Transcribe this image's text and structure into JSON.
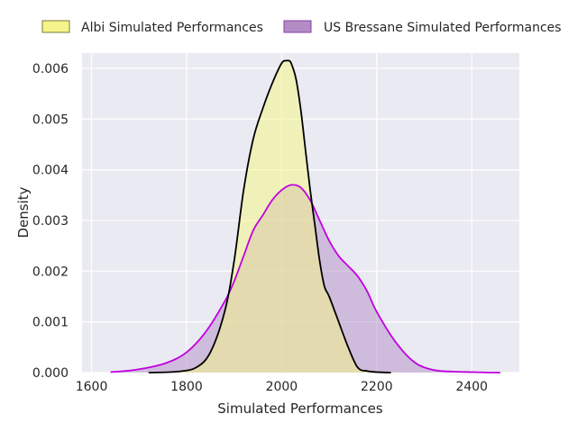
{
  "chart_data": {
    "type": "area",
    "xlabel": "Simulated Performances",
    "ylabel": "Density",
    "xlim": [
      1580,
      2500
    ],
    "ylim": [
      0,
      0.0063
    ],
    "xticks": [
      1600,
      1800,
      2000,
      2200,
      2400
    ],
    "xtick_labels": [
      "1600",
      "1800",
      "2000",
      "2200",
      "2400"
    ],
    "yticks": [
      0,
      0.001,
      0.002,
      0.003,
      0.004,
      0.005,
      0.006
    ],
    "ytick_labels": [
      "0.000",
      "0.001",
      "0.002",
      "0.003",
      "0.004",
      "0.005",
      "0.006"
    ],
    "grid": true,
    "legend_position": "top",
    "series": [
      {
        "name": "Albi Simulated Performances",
        "fill_color": "#f4f48a",
        "line_color": "#000000",
        "x": [
          1720,
          1780,
          1820,
          1850,
          1880,
          1900,
          1920,
          1940,
          1960,
          1980,
          2000,
          2010,
          2015,
          2020,
          2030,
          2040,
          2050,
          2060,
          2070,
          2080,
          2090,
          2100,
          2120,
          2140,
          2160,
          2180,
          2200,
          2230
        ],
        "y": [
          0,
          2e-05,
          0.0001,
          0.0004,
          0.0012,
          0.0022,
          0.0036,
          0.0046,
          0.0052,
          0.0057,
          0.0061,
          0.00615,
          0.00615,
          0.0061,
          0.0058,
          0.0052,
          0.0044,
          0.0036,
          0.0029,
          0.0022,
          0.0017,
          0.0015,
          0.001,
          0.0005,
          0.0001,
          3e-05,
          1e-05,
          0
        ]
      },
      {
        "name": "US Bressane Simulated Performances",
        "fill_color": "#b38cc6",
        "line_color": "#c000e0",
        "x": [
          1640,
          1680,
          1720,
          1760,
          1800,
          1840,
          1880,
          1900,
          1920,
          1940,
          1960,
          1980,
          2000,
          2020,
          2040,
          2060,
          2080,
          2100,
          2120,
          2140,
          2160,
          2180,
          2200,
          2240,
          2280,
          2320,
          2360,
          2400,
          2440,
          2460
        ],
        "y": [
          1e-05,
          4e-05,
          0.0001,
          0.0002,
          0.0004,
          0.0008,
          0.0014,
          0.0018,
          0.0023,
          0.0028,
          0.0031,
          0.0034,
          0.0036,
          0.0037,
          0.00365,
          0.0034,
          0.003,
          0.0026,
          0.0023,
          0.0021,
          0.0019,
          0.0016,
          0.0012,
          0.0006,
          0.0002,
          5e-05,
          2e-05,
          1e-05,
          0,
          0
        ]
      }
    ]
  }
}
